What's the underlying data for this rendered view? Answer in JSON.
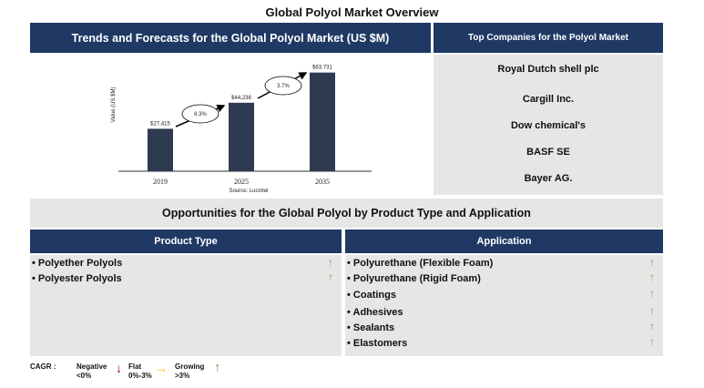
{
  "title": "Global Polyol Market Overview",
  "trends_header": "Trends and Forecasts for the Global Polyol Market (US $M)",
  "companies_header": "Top Companies for the Polyol Market",
  "companies": [
    "Royal Dutch shell plc",
    "Cargill Inc.",
    "Dow chemical's",
    "BASF SE",
    "Bayer AG."
  ],
  "opportunities_header": "Opportunities for the Global Polyol by Product Type and Application",
  "product_type_header": "Product Type",
  "application_header": "Application",
  "product_types": [
    "• Polyether Polyols",
    "• Polyester Polyols"
  ],
  "applications": [
    "• Polyurethane (Flexible Foam)",
    "• Polyurethane (Rigid Foam)",
    "• Coatings",
    "• Adhesives",
    "• Sealants",
    "• Elastomers"
  ],
  "legend": {
    "cagr": "CAGR :",
    "negative": "Negative",
    "negative_range": "<0%",
    "flat": "Flat",
    "flat_range": "0%-3%",
    "growing": "Growing",
    "growing_range": ">3%"
  },
  "colors": {
    "navy": "#1f3864",
    "bar": "#2e3a4f",
    "grey": "#e6e6e6",
    "green": "#70ad47",
    "red": "#c00000",
    "orange": "#ffc000"
  },
  "chart_data": {
    "type": "bar",
    "categories": [
      "2019",
      "2025",
      "2035"
    ],
    "values": [
      27415,
      44238,
      63731
    ],
    "value_labels": [
      "$27,415",
      "$44,238",
      "$63,731"
    ],
    "cagr_labels": [
      "8.3%",
      "3.7%"
    ],
    "ylabel": "Value (US $M)",
    "source": "Source: Lucintel",
    "ylim": [
      0,
      70000
    ]
  }
}
